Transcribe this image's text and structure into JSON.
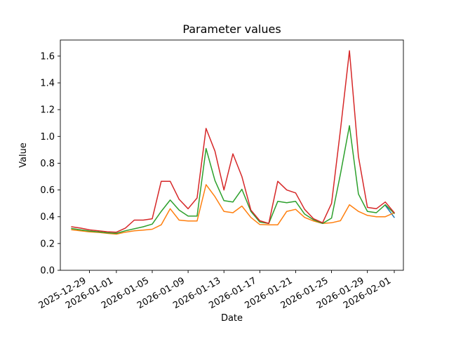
{
  "chart_data": {
    "type": "line",
    "title": "Parameter values",
    "xlabel": "Date",
    "ylabel": "Value",
    "ylim": [
      0,
      1.72
    ],
    "grid": false,
    "legend": "none",
    "y_tick_labels": [
      "0.0",
      "0.2",
      "0.4",
      "0.6",
      "0.8",
      "1.0",
      "1.2",
      "1.4",
      "1.6"
    ],
    "x_ticks": [
      {
        "i": 2,
        "label": "2025-12-29"
      },
      {
        "i": 5,
        "label": "2026-01-01"
      },
      {
        "i": 9,
        "label": "2026-01-05"
      },
      {
        "i": 13,
        "label": "2026-01-09"
      },
      {
        "i": 17,
        "label": "2026-01-13"
      },
      {
        "i": 21,
        "label": "2026-01-17"
      },
      {
        "i": 25,
        "label": "2026-01-21"
      },
      {
        "i": 29,
        "label": "2026-01-25"
      },
      {
        "i": 33,
        "label": "2026-01-29"
      },
      {
        "i": 36,
        "label": "2026-02-01"
      }
    ],
    "categories": [
      "2025-12-27",
      "2025-12-28",
      "2025-12-29",
      "2025-12-30",
      "2025-12-31",
      "2026-01-01",
      "2026-01-02",
      "2026-01-03",
      "2026-01-04",
      "2026-01-05",
      "2026-01-06",
      "2026-01-07",
      "2026-01-08",
      "2026-01-09",
      "2026-01-10",
      "2026-01-11",
      "2026-01-12",
      "2026-01-13",
      "2026-01-14",
      "2026-01-15",
      "2026-01-16",
      "2026-01-17",
      "2026-01-18",
      "2026-01-19",
      "2026-01-20",
      "2026-01-21",
      "2026-01-22",
      "2026-01-23",
      "2026-01-24",
      "2026-01-25",
      "2026-01-26",
      "2026-01-27",
      "2026-01-28",
      "2026-01-29",
      "2026-01-30",
      "2026-01-31",
      "2026-02-01"
    ],
    "series": [
      {
        "name": "blue",
        "color": "#1f77b4",
        "values": [
          null,
          null,
          null,
          null,
          null,
          null,
          null,
          null,
          null,
          null,
          null,
          null,
          null,
          null,
          null,
          null,
          null,
          null,
          null,
          null,
          null,
          null,
          null,
          null,
          null,
          null,
          null,
          null,
          null,
          null,
          null,
          null,
          null,
          null,
          null,
          0.485,
          0.395
        ]
      },
      {
        "name": "orange",
        "color": "#ff7f0e",
        "values": [
          0.303,
          0.295,
          0.287,
          0.283,
          0.276,
          0.27,
          0.285,
          0.295,
          0.3,
          0.307,
          0.34,
          0.46,
          0.375,
          0.368,
          0.368,
          0.64,
          0.55,
          0.44,
          0.43,
          0.48,
          0.395,
          0.342,
          0.34,
          0.34,
          0.44,
          0.455,
          0.395,
          0.368,
          0.35,
          0.355,
          0.37,
          0.49,
          0.44,
          0.41,
          0.4,
          0.4,
          0.43
        ]
      },
      {
        "name": "green",
        "color": "#2ca02c",
        "values": [
          0.312,
          0.302,
          0.293,
          0.287,
          0.28,
          0.276,
          0.295,
          0.31,
          0.325,
          0.345,
          0.44,
          0.525,
          0.45,
          0.405,
          0.405,
          0.91,
          0.67,
          0.52,
          0.51,
          0.605,
          0.44,
          0.36,
          0.35,
          0.515,
          0.505,
          0.515,
          0.42,
          0.377,
          0.35,
          0.39,
          0.72,
          1.08,
          0.57,
          0.44,
          0.43,
          0.49,
          0.425
        ]
      },
      {
        "name": "red",
        "color": "#d62728",
        "values": [
          0.325,
          0.315,
          0.302,
          0.295,
          0.288,
          0.285,
          0.315,
          0.375,
          0.375,
          0.385,
          0.665,
          0.665,
          0.53,
          0.46,
          0.54,
          1.06,
          0.89,
          0.6,
          0.87,
          0.7,
          0.45,
          0.37,
          0.35,
          0.665,
          0.6,
          0.578,
          0.455,
          0.385,
          0.355,
          0.5,
          1.05,
          1.64,
          0.85,
          0.47,
          0.46,
          0.51,
          0.43
        ]
      }
    ]
  }
}
